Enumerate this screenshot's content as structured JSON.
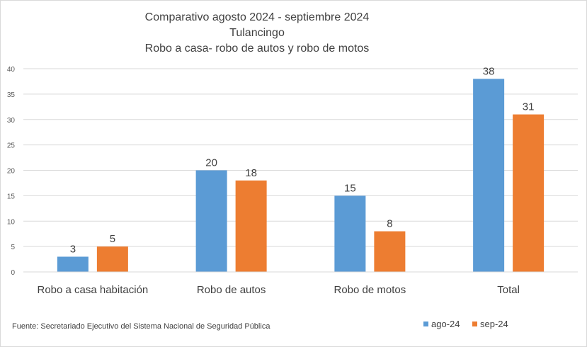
{
  "chart_data": {
    "type": "bar",
    "title": [
      "Comparativo agosto 2024 - septiembre 2024",
      "Tulancingo",
      "Robo a casa- robo de autos y robo de motos"
    ],
    "categories": [
      "Robo a casa habitación",
      "Robo de autos",
      "Robo de motos",
      "Total"
    ],
    "series": [
      {
        "name": "ago-24",
        "color": "#5b9bd5",
        "values": [
          3,
          20,
          15,
          38
        ]
      },
      {
        "name": "sep-24",
        "color": "#ed7d31",
        "values": [
          5,
          18,
          8,
          31
        ]
      }
    ],
    "ylim": [
      0,
      40
    ],
    "yticks": [
      0,
      5,
      10,
      15,
      20,
      25,
      30,
      35,
      40
    ],
    "grid": true,
    "legend_position": "bottom-right",
    "data_labels": true
  },
  "source_note": "Fuente:  Secretariado Ejecutivo del Sistema Nacional de Seguridad Pública"
}
